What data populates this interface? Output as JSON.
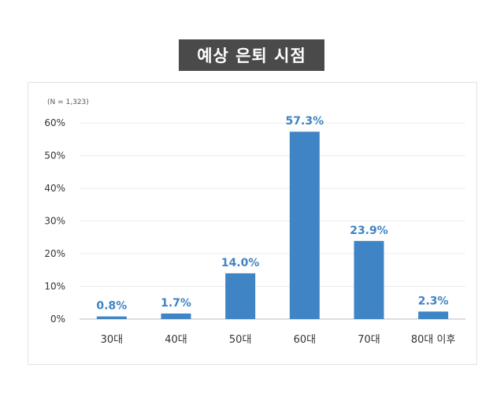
{
  "chart_data": {
    "type": "bar",
    "title": "예상 은퇴 시점",
    "note": "(N = 1,323)",
    "categories": [
      "30대",
      "40대",
      "50대",
      "60대",
      "70대",
      "80대 이후"
    ],
    "values": [
      0.8,
      1.7,
      14.0,
      57.3,
      23.9,
      2.3
    ],
    "value_labels": [
      "0.8%",
      "1.7%",
      "14.0%",
      "57.3%",
      "23.9%",
      "2.3%"
    ],
    "y_ticks": [
      0,
      10,
      20,
      30,
      40,
      50,
      60
    ],
    "y_tick_labels": [
      "0%",
      "10%",
      "20%",
      "30%",
      "40%",
      "50%",
      "60%"
    ],
    "ylim": [
      0,
      60
    ],
    "grid": true,
    "bar_color": "#3f84c4",
    "label_color": "#3f84c4"
  }
}
